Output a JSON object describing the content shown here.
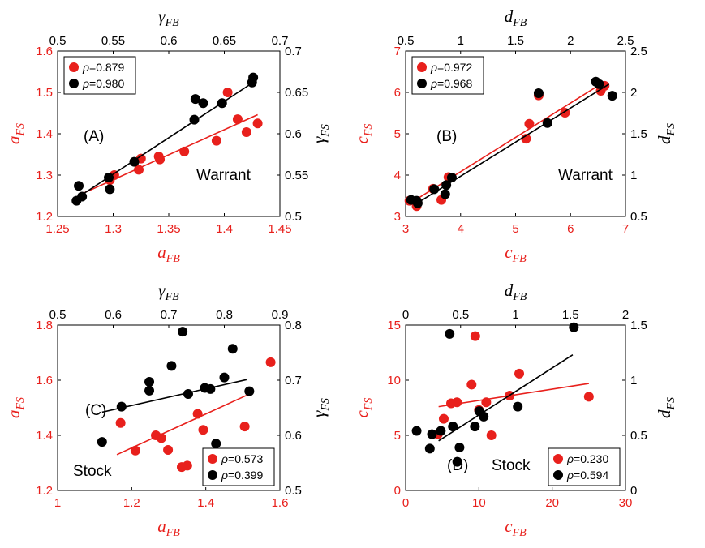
{
  "colors": {
    "red": "#e8201c",
    "black": "#000000",
    "frame": "#000000"
  },
  "chart_data": [
    {
      "type": "scatter",
      "panel_label": "(A)",
      "context_label": "Warrant",
      "bottom_axis": {
        "label_base": "a",
        "label_sub": "FB",
        "range": [
          1.25,
          1.45
        ],
        "ticks": [
          1.25,
          1.3,
          1.35,
          1.4,
          1.45
        ],
        "tick_labels": [
          "1.25",
          "1.3",
          "1.35",
          "1.4",
          "1.45"
        ]
      },
      "left_axis": {
        "label_base": "a",
        "label_sub": "FS",
        "range": [
          1.2,
          1.6
        ],
        "ticks": [
          1.2,
          1.3,
          1.4,
          1.5,
          1.6
        ],
        "tick_labels": [
          "1.2",
          "1.3",
          "1.4",
          "1.5",
          "1.6"
        ]
      },
      "top_axis": {
        "label_base": "γ",
        "label_sub": "FB",
        "range": [
          0.5,
          0.7
        ],
        "ticks": [
          0.5,
          0.55,
          0.6,
          0.65,
          0.7
        ],
        "tick_labels": [
          "0.5",
          "0.55",
          "0.6",
          "0.65",
          "0.7"
        ]
      },
      "right_axis": {
        "label_base": "γ",
        "label_sub": "FS",
        "range": [
          0.5,
          0.7
        ],
        "ticks": [
          0.5,
          0.55,
          0.6,
          0.65,
          0.7
        ],
        "tick_labels": [
          "0.5",
          "0.55",
          "0.6",
          "0.65",
          "0.7"
        ]
      },
      "legend": {
        "position": "top-left",
        "entries": [
          {
            "prefix": "ρ",
            "text": "=0.879",
            "color": "red"
          },
          {
            "prefix": "ρ",
            "text": "=0.980",
            "color": "black"
          }
        ]
      },
      "series": [
        {
          "color": "red",
          "axes": "bottom-left",
          "points": [
            [
              1.297,
              1.288
            ],
            [
              1.301,
              1.3
            ],
            [
              1.323,
              1.313
            ],
            [
              1.325,
              1.34
            ],
            [
              1.341,
              1.345
            ],
            [
              1.342,
              1.338
            ],
            [
              1.364,
              1.357
            ],
            [
              1.393,
              1.383
            ],
            [
              1.403,
              1.5
            ],
            [
              1.412,
              1.435
            ],
            [
              1.42,
              1.404
            ],
            [
              1.43,
              1.425
            ]
          ],
          "fit": [
            [
              1.268,
              1.25
            ],
            [
              1.43,
              1.446
            ]
          ]
        },
        {
          "color": "black",
          "axes": "top-right",
          "points": [
            [
              0.517,
              0.519
            ],
            [
              0.519,
              0.537
            ],
            [
              0.522,
              0.524
            ],
            [
              0.546,
              0.547
            ],
            [
              0.547,
              0.533
            ],
            [
              0.569,
              0.566
            ],
            [
              0.623,
              0.617
            ],
            [
              0.624,
              0.642
            ],
            [
              0.631,
              0.637
            ],
            [
              0.648,
              0.637
            ],
            [
              0.675,
              0.662
            ],
            [
              0.676,
              0.668
            ]
          ],
          "fit": [
            [
              0.517,
              0.522
            ],
            [
              0.677,
              0.663
            ]
          ]
        }
      ]
    },
    {
      "type": "scatter",
      "panel_label": "(B)",
      "context_label": "Warrant",
      "bottom_axis": {
        "label_base": "c",
        "label_sub": "FB",
        "range": [
          3,
          7
        ],
        "ticks": [
          3,
          4,
          5,
          6,
          7
        ],
        "tick_labels": [
          "3",
          "4",
          "5",
          "6",
          "7"
        ]
      },
      "left_axis": {
        "label_base": "c",
        "label_sub": "FS",
        "range": [
          3,
          7
        ],
        "ticks": [
          3,
          4,
          5,
          6,
          7
        ],
        "tick_labels": [
          "3",
          "4",
          "5",
          "6",
          "7"
        ]
      },
      "top_axis": {
        "label_base": "d",
        "label_sub": "FB",
        "range": [
          0.5,
          2.5
        ],
        "ticks": [
          0.5,
          1,
          1.5,
          2,
          2.5
        ],
        "tick_labels": [
          "0.5",
          "1",
          "1.5",
          "2",
          "2.5"
        ]
      },
      "right_axis": {
        "label_base": "d",
        "label_sub": "FS",
        "range": [
          0.5,
          2.5
        ],
        "ticks": [
          0.5,
          1,
          1.5,
          2,
          2.5
        ],
        "tick_labels": [
          "0.5",
          "1",
          "1.5",
          "2",
          "2.5"
        ]
      },
      "legend": {
        "position": "top-left",
        "entries": [
          {
            "prefix": "ρ",
            "text": "=0.972",
            "color": "red"
          },
          {
            "prefix": "ρ",
            "text": "=0.968",
            "color": "black"
          }
        ]
      },
      "series": [
        {
          "color": "red",
          "axes": "bottom-left",
          "points": [
            [
              3.07,
              3.38
            ],
            [
              3.2,
              3.25
            ],
            [
              3.21,
              3.35
            ],
            [
              3.5,
              3.67
            ],
            [
              3.65,
              3.4
            ],
            [
              3.78,
              3.95
            ],
            [
              5.19,
              4.88
            ],
            [
              5.25,
              5.24
            ],
            [
              5.42,
              5.93
            ],
            [
              5.9,
              5.51
            ],
            [
              6.55,
              6.04
            ],
            [
              6.62,
              6.16
            ]
          ],
          "fit": [
            [
              3.06,
              3.3
            ],
            [
              6.55,
              6.2
            ]
          ]
        },
        {
          "color": "black",
          "axes": "top-right",
          "points": [
            [
              0.55,
              0.7
            ],
            [
              0.61,
              0.66
            ],
            [
              0.6,
              0.69
            ],
            [
              0.76,
              0.83
            ],
            [
              0.86,
              0.77
            ],
            [
              0.87,
              0.88
            ],
            [
              0.92,
              0.97
            ],
            [
              1.71,
              1.99
            ],
            [
              1.79,
              1.63
            ],
            [
              2.23,
              2.13
            ],
            [
              2.26,
              2.1
            ],
            [
              2.38,
              1.96
            ]
          ],
          "fit": [
            [
              0.58,
              0.64
            ],
            [
              2.35,
              2.1
            ]
          ]
        }
      ]
    },
    {
      "type": "scatter",
      "panel_label": "(C)",
      "context_label": "Stock",
      "bottom_axis": {
        "label_base": "a",
        "label_sub": "FB",
        "range": [
          1,
          1.6
        ],
        "ticks": [
          1,
          1.2,
          1.4,
          1.6
        ],
        "tick_labels": [
          "1",
          "1.2",
          "1.4",
          "1.6"
        ]
      },
      "left_axis": {
        "label_base": "a",
        "label_sub": "FS",
        "range": [
          1.2,
          1.8
        ],
        "ticks": [
          1.2,
          1.4,
          1.6,
          1.8
        ],
        "tick_labels": [
          "1.2",
          "1.4",
          "1.6",
          "1.8"
        ]
      },
      "top_axis": {
        "label_base": "γ",
        "label_sub": "FB",
        "range": [
          0.5,
          0.9
        ],
        "ticks": [
          0.5,
          0.6,
          0.7,
          0.8,
          0.9
        ],
        "tick_labels": [
          "0.5",
          "0.6",
          "0.7",
          "0.8",
          "0.9"
        ]
      },
      "right_axis": {
        "label_base": "γ",
        "label_sub": "FS",
        "range": [
          0.5,
          0.8
        ],
        "ticks": [
          0.5,
          0.6,
          0.7,
          0.8
        ],
        "tick_labels": [
          "0.5",
          "0.6",
          "0.7",
          "0.8"
        ]
      },
      "legend": {
        "position": "bottom-right",
        "entries": [
          {
            "prefix": "ρ",
            "text": "=0.573",
            "color": "red"
          },
          {
            "prefix": "ρ",
            "text": "=0.399",
            "color": "black"
          }
        ]
      },
      "series": [
        {
          "color": "red",
          "axes": "bottom-left",
          "points": [
            [
              1.17,
              1.445
            ],
            [
              1.21,
              1.345
            ],
            [
              1.265,
              1.4
            ],
            [
              1.28,
              1.39
            ],
            [
              1.298,
              1.347
            ],
            [
              1.335,
              1.285
            ],
            [
              1.35,
              1.29
            ],
            [
              1.378,
              1.478
            ],
            [
              1.393,
              1.42
            ],
            [
              1.505,
              1.432
            ],
            [
              1.575,
              1.665
            ]
          ],
          "fit": [
            [
              1.16,
              1.33
            ],
            [
              1.51,
              1.545
            ]
          ]
        },
        {
          "color": "black",
          "axes": "top-right",
          "points": [
            [
              0.58,
              0.588
            ],
            [
              0.615,
              0.652
            ],
            [
              0.665,
              0.697
            ],
            [
              0.665,
              0.681
            ],
            [
              0.705,
              0.726
            ],
            [
              0.725,
              0.788
            ],
            [
              0.735,
              0.675
            ],
            [
              0.765,
              0.686
            ],
            [
              0.775,
              0.684
            ],
            [
              0.785,
              0.585
            ],
            [
              0.8,
              0.705
            ],
            [
              0.815,
              0.757
            ],
            [
              0.845,
              0.68
            ]
          ],
          "fit": [
            [
              0.58,
              0.642
            ],
            [
              0.84,
              0.701
            ]
          ]
        }
      ]
    },
    {
      "type": "scatter",
      "panel_label": "(D)",
      "context_label": "Stock",
      "bottom_axis": {
        "label_base": "c",
        "label_sub": "FB",
        "range": [
          0,
          30
        ],
        "ticks": [
          0,
          10,
          20,
          30
        ],
        "tick_labels": [
          "0",
          "10",
          "20",
          "30"
        ]
      },
      "left_axis": {
        "label_base": "c",
        "label_sub": "FS",
        "range": [
          0,
          15
        ],
        "ticks": [
          0,
          5,
          10,
          15
        ],
        "tick_labels": [
          "0",
          "5",
          "10",
          "15"
        ]
      },
      "top_axis": {
        "label_base": "d",
        "label_sub": "FB",
        "range": [
          0,
          2
        ],
        "ticks": [
          0,
          0.5,
          1,
          1.5,
          2
        ],
        "tick_labels": [
          "0",
          "0.5",
          "1",
          "1.5",
          "2"
        ]
      },
      "right_axis": {
        "label_base": "d",
        "label_sub": "FS",
        "range": [
          0,
          1.5
        ],
        "ticks": [
          0,
          0.5,
          1,
          1.5
        ],
        "tick_labels": [
          "0",
          "0.5",
          "1",
          "1.5"
        ]
      },
      "legend": {
        "position": "bottom-right",
        "entries": [
          {
            "prefix": "ρ",
            "text": "=0.230",
            "color": "red"
          },
          {
            "prefix": "ρ",
            "text": "=0.594",
            "color": "black"
          }
        ]
      },
      "series": [
        {
          "color": "red",
          "axes": "bottom-left",
          "points": [
            [
              4.4,
              5.1
            ],
            [
              5.2,
              6.5
            ],
            [
              6.2,
              7.9
            ],
            [
              7.0,
              8.0
            ],
            [
              9.0,
              9.6
            ],
            [
              9.5,
              14.0
            ],
            [
              10.0,
              7.3
            ],
            [
              11.0,
              8.0
            ],
            [
              11.7,
              5.0
            ],
            [
              14.2,
              8.6
            ],
            [
              15.5,
              10.6
            ],
            [
              25.0,
              8.5
            ]
          ],
          "fit": [
            [
              4.5,
              7.6
            ],
            [
              25.0,
              9.7
            ]
          ]
        },
        {
          "color": "black",
          "axes": "top-right",
          "points": [
            [
              0.1,
              0.54
            ],
            [
              0.22,
              0.38
            ],
            [
              0.24,
              0.51
            ],
            [
              0.32,
              0.54
            ],
            [
              0.4,
              1.42
            ],
            [
              0.43,
              0.58
            ],
            [
              0.47,
              0.26
            ],
            [
              0.49,
              0.39
            ],
            [
              0.63,
              0.58
            ],
            [
              0.67,
              0.72
            ],
            [
              0.71,
              0.67
            ],
            [
              1.02,
              0.76
            ],
            [
              1.53,
              1.48
            ]
          ],
          "fit": [
            [
              0.3,
              0.45
            ],
            [
              1.52,
              1.23
            ]
          ]
        }
      ]
    }
  ]
}
